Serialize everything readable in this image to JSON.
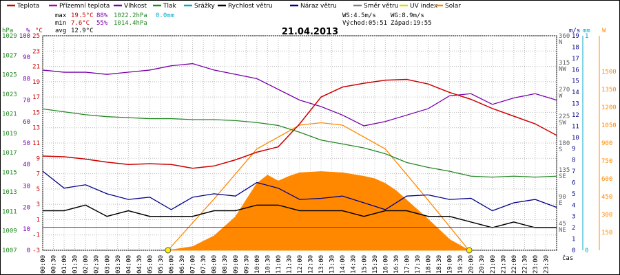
{
  "chart_data": {
    "type": "line",
    "title": "21.04.2013",
    "x_label": "čas",
    "legend": [
      {
        "name": "Teplota",
        "color": "#cc0000"
      },
      {
        "name": "Přízemní teplota",
        "color": "#aa00aa"
      },
      {
        "name": "Vlhkost",
        "color": "#7700aa"
      },
      {
        "name": "Tlak",
        "color": "#228822"
      },
      {
        "name": "Srážky",
        "color": "#00aacc"
      },
      {
        "name": "Rychlost větru",
        "color": "#000000"
      },
      {
        "name": "Náraz větru",
        "color": "#000088"
      },
      {
        "name": "Směr větru",
        "color": "#808080"
      },
      {
        "name": "UV index",
        "color": "#dddd00"
      },
      {
        "name": "Solar",
        "color": "#ff8800"
      }
    ],
    "stats": {
      "max_label": "max",
      "max_temp": "19.5°C",
      "max_hum": "88%",
      "max_press": "1022.2hPa",
      "rain": "0.0mm",
      "min_label": "min",
      "min_temp": "7.6°C",
      "min_hum": "55%",
      "min_press": "1014.4hPa",
      "avg_label": "avg",
      "avg_temp": "12.9°C",
      "ws": "WS:4.5m/s",
      "wg": "WG:8.9m/s",
      "sunrise": "Východ:05:51",
      "sunset": "Západ:19:55"
    },
    "axis_units": {
      "hpa": "hPa",
      "pct": "%",
      "temp": "°C",
      "ms": "m/s",
      "mm": "mm",
      "w": "W"
    },
    "axes": {
      "temp": {
        "min": -3,
        "max": 25
      },
      "hpa": {
        "min": 1007,
        "max": 1029
      },
      "pct": {
        "min": 0,
        "max": 100
      },
      "ms": {
        "min": 0,
        "max": 19
      },
      "dir": {
        "min": 0,
        "max": 360
      },
      "mm": {
        "min": 0,
        "max": 1
      },
      "w": {
        "min": 0,
        "max": 1800
      }
    },
    "ticks": {
      "hpa": [
        "1029",
        "1027",
        "1025",
        "1023",
        "1021",
        "1019",
        "1017",
        "1015",
        "1013",
        "1011",
        "1009",
        "1007"
      ],
      "pct": [
        "100",
        "90",
        "80",
        "70",
        "60",
        "50",
        "40",
        "30",
        "20",
        "10",
        "0"
      ],
      "temp": [
        "25",
        "23",
        "21",
        "19",
        "17",
        "15",
        "13",
        "11",
        "9",
        "7",
        "5",
        "3",
        "1",
        "-1",
        "-3"
      ],
      "ms": [
        "19",
        "18",
        "17",
        "16",
        "15",
        "14",
        "13",
        "12",
        "11",
        "10",
        "9",
        "8",
        "7",
        "6",
        "5",
        "4",
        "3",
        "2",
        "1",
        "0"
      ],
      "dir": [
        "360 N",
        "315 NW",
        "270 W",
        "225 SW",
        "180 S",
        "135 SE",
        "90 E",
        "45 NE"
      ],
      "mm": [
        "1",
        "0"
      ],
      "w": [
        "1500",
        "1350",
        "1200",
        "1050",
        "900",
        "750",
        "600",
        "450",
        "300",
        "150"
      ],
      "time": [
        "00:00",
        "00:30",
        "01:00",
        "01:30",
        "02:00",
        "02:30",
        "03:00",
        "03:30",
        "04:00",
        "04:30",
        "05:00",
        "05:30",
        "06:00",
        "06:30",
        "07:00",
        "07:30",
        "08:00",
        "08:30",
        "09:00",
        "09:30",
        "10:00",
        "10:30",
        "11:00",
        "11:30",
        "12:00",
        "12:30",
        "13:00",
        "13:30",
        "14:00",
        "14:30",
        "15:00",
        "15:30",
        "16:00",
        "16:30",
        "17:00",
        "17:30",
        "18:00",
        "18:30",
        "19:00",
        "19:30",
        "20:00",
        "20:30",
        "21:00",
        "21:30",
        "22:00",
        "22:30",
        "23:00",
        "23:30"
      ]
    },
    "series": {
      "temperature_x": [
        0,
        1,
        2,
        3,
        4,
        5,
        6,
        7,
        8,
        9,
        10,
        11,
        12,
        13,
        14,
        15,
        16,
        17,
        18,
        19,
        20,
        21,
        22,
        23,
        24
      ],
      "temperature_y": [
        9.3,
        9.2,
        8.9,
        8.5,
        8.2,
        8.3,
        8.2,
        7.7,
        8.0,
        8.8,
        9.8,
        10.5,
        13.5,
        17.0,
        18.3,
        18.8,
        19.2,
        19.3,
        18.7,
        17.6,
        16.7,
        15.5,
        14.5,
        13.5,
        12.0
      ],
      "humidity_x": [
        0,
        1,
        2,
        3,
        4,
        5,
        6,
        7,
        8,
        9,
        10,
        11,
        12,
        13,
        14,
        15,
        16,
        17,
        18,
        19,
        20,
        21,
        22,
        23,
        24
      ],
      "humidity_y": [
        84,
        83,
        83,
        82,
        83,
        84,
        86,
        87,
        84,
        82,
        80,
        75,
        70,
        67,
        63,
        58,
        60,
        63,
        66,
        72,
        73,
        68,
        71,
        73,
        70
      ],
      "pressure_x": [
        0,
        1,
        2,
        3,
        4,
        5,
        6,
        7,
        8,
        9,
        10,
        11,
        12,
        13,
        14,
        15,
        16,
        17,
        18,
        19,
        20,
        21,
        22,
        23,
        24
      ],
      "pressure_y": [
        1021.5,
        1021.2,
        1020.9,
        1020.7,
        1020.6,
        1020.5,
        1020.5,
        1020.4,
        1020.4,
        1020.3,
        1020.1,
        1019.8,
        1019.1,
        1018.3,
        1017.9,
        1017.5,
        1016.9,
        1016.0,
        1015.5,
        1015.1,
        1014.6,
        1014.5,
        1014.6,
        1014.5,
        1014.6
      ],
      "gust_x": [
        0,
        1,
        2,
        3,
        4,
        5,
        6,
        7,
        8,
        9,
        10,
        11,
        12,
        13,
        14,
        15,
        16,
        17,
        18,
        19,
        20,
        21,
        22,
        23,
        24
      ],
      "gust_y": [
        7.0,
        5.5,
        5.8,
        5.0,
        4.5,
        4.7,
        3.6,
        4.7,
        5.0,
        4.8,
        6.0,
        5.5,
        4.5,
        4.6,
        4.8,
        4.2,
        3.6,
        4.8,
        4.9,
        4.5,
        4.6,
        3.5,
        4.2,
        4.5,
        3.8
      ],
      "windspeed_x": [
        0,
        1,
        2,
        3,
        4,
        5,
        6,
        7,
        8,
        9,
        10,
        11,
        12,
        13,
        14,
        15,
        16,
        17,
        18,
        19,
        20,
        21,
        22,
        23,
        24
      ],
      "windspeed_y": [
        3.5,
        3.5,
        4.0,
        3.0,
        3.5,
        3.0,
        3.0,
        3.0,
        3.5,
        3.5,
        4.0,
        4.0,
        3.5,
        3.5,
        3.5,
        3.0,
        3.5,
        3.5,
        3.0,
        3.0,
        2.5,
        2.0,
        2.5,
        2.0,
        2.0
      ],
      "solar_x": [
        5.9,
        7,
        8,
        9,
        9.5,
        10,
        10.5,
        11,
        11.5,
        12,
        13,
        14,
        15,
        15.5,
        16,
        16.5,
        17,
        18,
        19,
        19.9
      ],
      "solar_y": [
        0,
        30,
        120,
        280,
        420,
        560,
        630,
        580,
        620,
        650,
        660,
        650,
        620,
        600,
        560,
        500,
        420,
        260,
        90,
        0
      ],
      "solar_max_x": [
        5.85,
        8,
        10,
        12,
        13,
        14,
        16,
        18,
        19.9
      ],
      "solar_max_y": [
        0,
        430,
        850,
        1050,
        1070,
        1050,
        850,
        420,
        0
      ]
    }
  }
}
